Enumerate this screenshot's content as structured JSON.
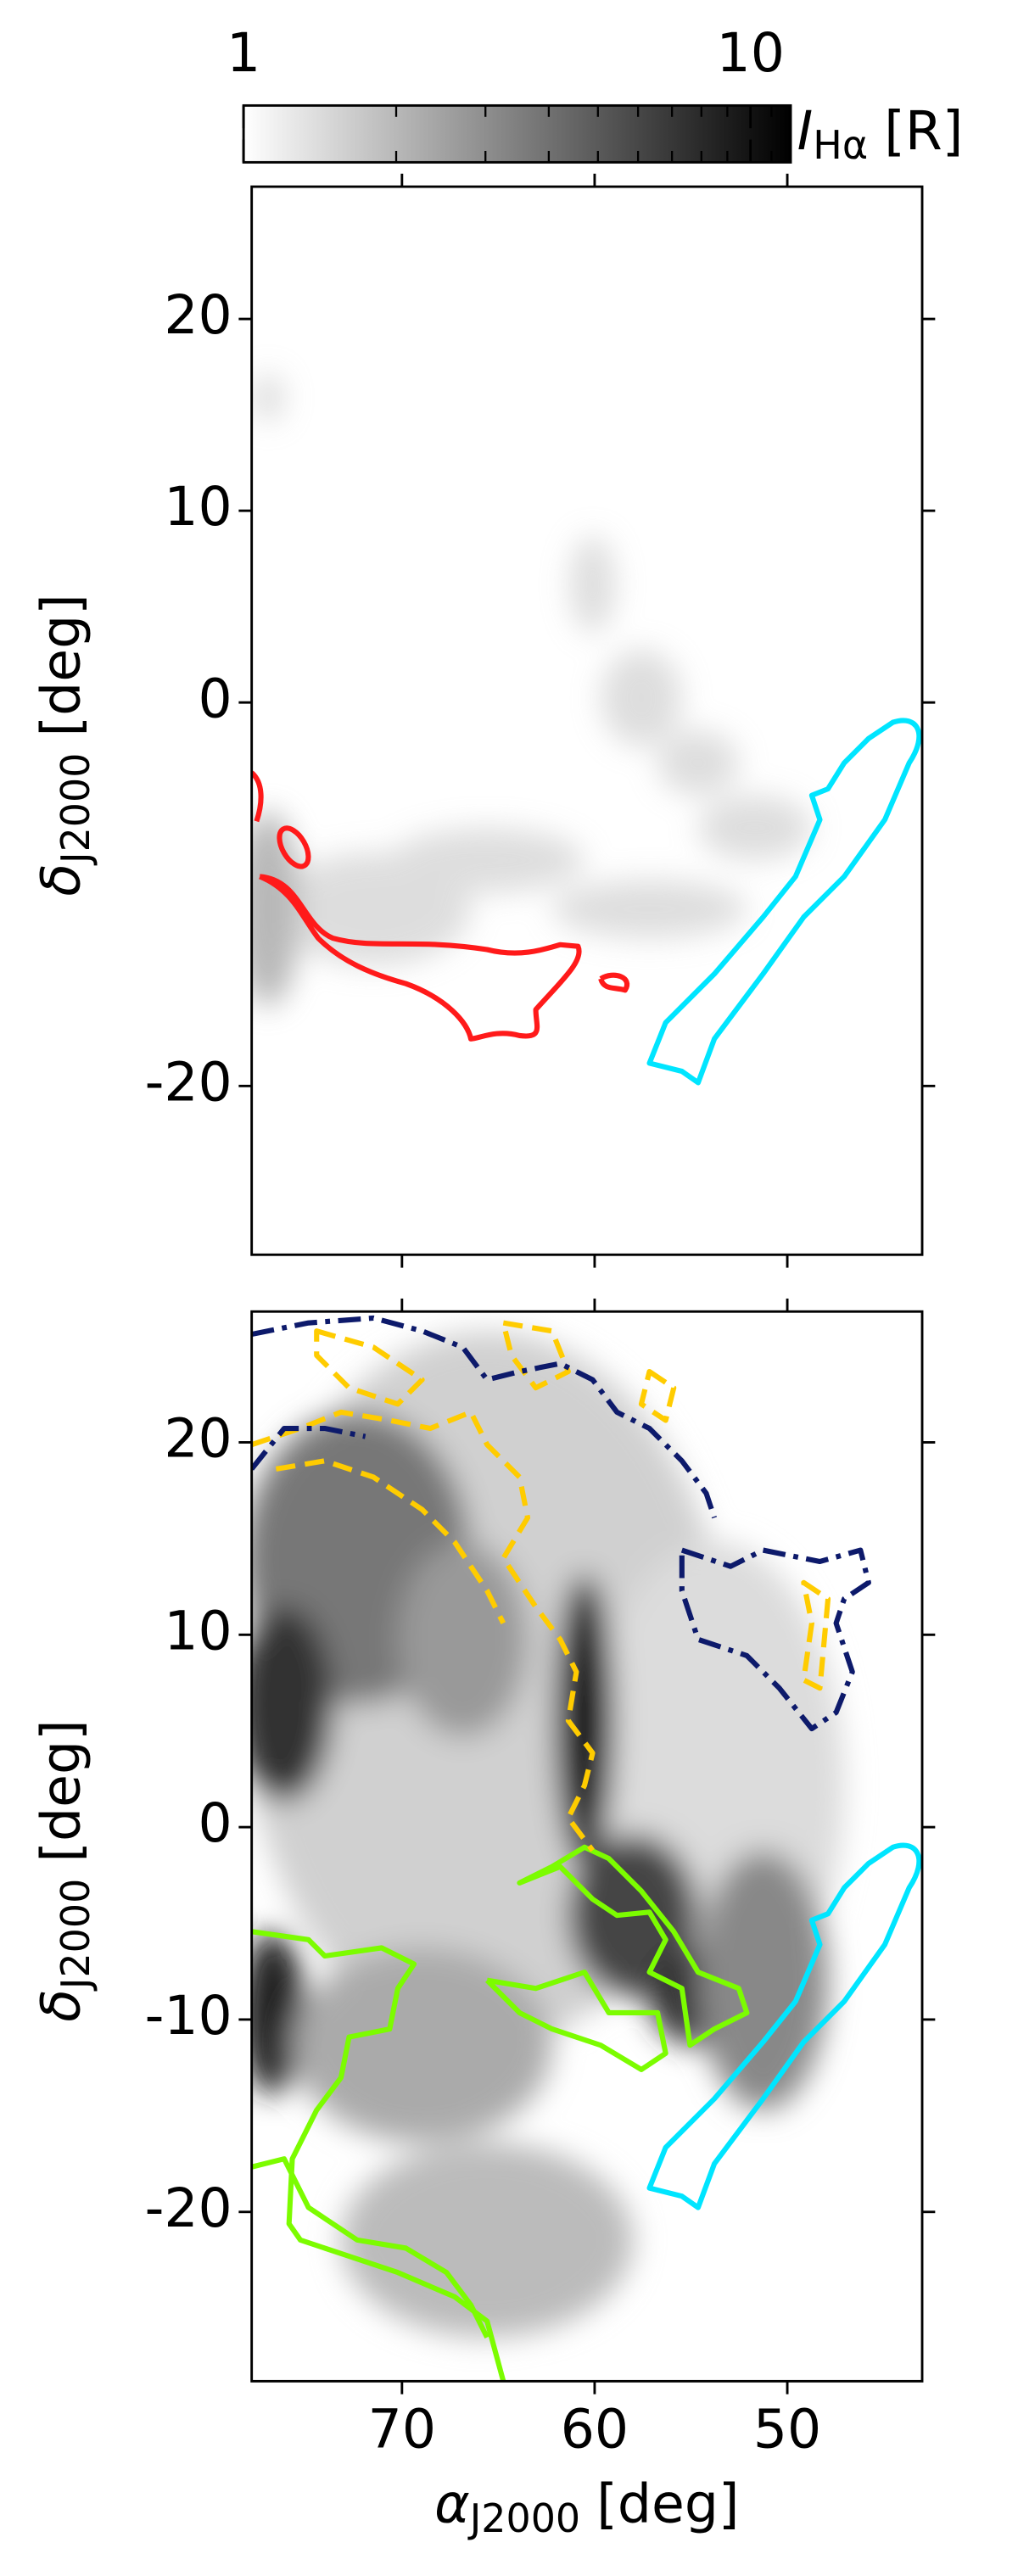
{
  "chart_data": [
    {
      "type": "colorbar",
      "label": {
        "symbol": "I",
        "subscript": "Hα",
        "unit": "[R]"
      },
      "xscale": "log",
      "xlim": [
        1,
        12
      ],
      "xticks": [
        1,
        10
      ],
      "xminorticks": [
        2,
        3,
        4,
        5,
        6,
        7,
        8,
        9,
        11
      ],
      "colors": [
        "#ffffff",
        "#000000"
      ]
    },
    {
      "type": "map",
      "xlim": [
        77.8,
        43.0
      ],
      "ylim": [
        -28.8,
        26.9
      ],
      "xticks": [
        70,
        60,
        50
      ],
      "xticklabels": false,
      "yticks": [
        20,
        10,
        0,
        -20
      ],
      "ylabel": {
        "symbol": "δ",
        "subscript": "J2000",
        "unit": "[deg]"
      }
    },
    {
      "type": "map",
      "xlim": [
        77.8,
        43.0
      ],
      "ylim": [
        -28.8,
        26.8
      ],
      "xticks": [
        70,
        60,
        50
      ],
      "xticklabels": true,
      "yticks": [
        20,
        10,
        0,
        -10,
        -20
      ],
      "xlabel": {
        "symbol": "α",
        "subscript": "J2000",
        "unit": "[deg]"
      },
      "ylabel": {
        "symbol": "δ",
        "subscript": "J2000",
        "unit": "[deg]"
      }
    }
  ]
}
